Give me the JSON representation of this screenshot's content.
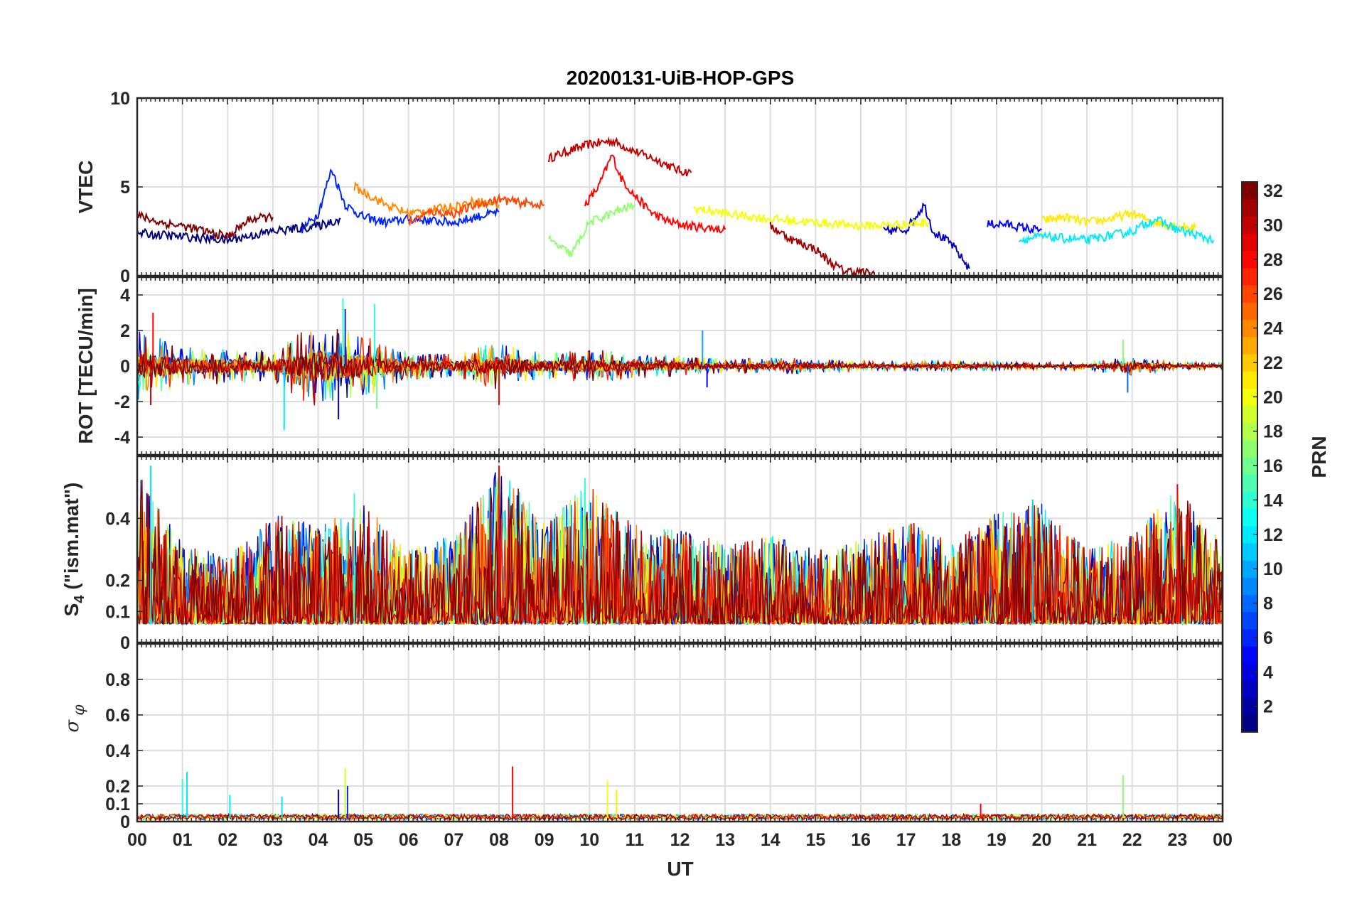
{
  "chart_data": {
    "type": "line",
    "title": "20200131-UiB-HOP-GPS",
    "xlabel": "UT",
    "xlim": [
      0,
      24
    ],
    "x_tick_labels": [
      "00",
      "01",
      "02",
      "03",
      "04",
      "05",
      "06",
      "07",
      "08",
      "09",
      "10",
      "11",
      "12",
      "13",
      "14",
      "15",
      "16",
      "17",
      "18",
      "19",
      "20",
      "21",
      "22",
      "23",
      "00"
    ],
    "grid": true,
    "colorbar": {
      "label": "PRN",
      "colormap": "jet",
      "range": [
        1,
        32
      ],
      "tick_labels": [
        "2",
        "4",
        "6",
        "8",
        "10",
        "12",
        "14",
        "16",
        "18",
        "20",
        "22",
        "24",
        "26",
        "28",
        "30",
        "32"
      ],
      "placement": "right"
    },
    "panels": [
      {
        "key": "vtec",
        "ylabel": "VTEC",
        "ylim": [
          0,
          10
        ],
        "y_ticks": [
          0,
          5,
          10
        ],
        "y_tick_labels": [
          "0",
          "5",
          "10"
        ],
        "series": [
          {
            "prn": 30,
            "x": [
              9.1,
              9.5,
              10.0,
              10.5,
              11.0,
              11.5,
              12.0,
              12.25
            ],
            "y": [
              6.6,
              7.0,
              7.4,
              7.6,
              7.0,
              6.5,
              5.9,
              5.8
            ]
          },
          {
            "prn": 28,
            "x": [
              9.9,
              10.2,
              10.5,
              10.7,
              11.0,
              11.4,
              11.8,
              12.2,
              13.0
            ],
            "y": [
              4.0,
              5.0,
              6.8,
              5.5,
              4.5,
              3.5,
              3.0,
              2.8,
              2.6
            ]
          },
          {
            "prn": 6,
            "x": [
              3.6,
              4.0,
              4.3,
              4.6,
              5.0,
              5.5,
              6.0,
              7.0,
              8.0
            ],
            "y": [
              2.5,
              3.5,
              6.0,
              4.0,
              3.3,
              3.0,
              3.2,
              3.0,
              3.6
            ]
          },
          {
            "prn": 3,
            "x": [
              16.5,
              17.0,
              17.4,
              17.6,
              18.0,
              18.4
            ],
            "y": [
              2.5,
              2.6,
              4.0,
              2.5,
              1.8,
              0.4
            ]
          },
          {
            "prn": 5,
            "x": [
              18.8,
              19.2,
              19.8,
              20.0
            ],
            "y": [
              2.9,
              2.9,
              2.6,
              2.6
            ]
          },
          {
            "prn": 21,
            "x": [
              20.0,
              20.5,
              21.0,
              21.5,
              22.0,
              22.5,
              23.0,
              23.4
            ],
            "y": [
              3.1,
              3.3,
              3.0,
              3.2,
              3.5,
              3.0,
              2.8,
              2.7
            ]
          },
          {
            "prn": 31,
            "x": [
              14.0,
              14.5,
              15.0,
              15.3,
              15.6,
              16.0,
              16.3
            ],
            "y": [
              2.8,
              2.0,
              1.5,
              0.8,
              0.3,
              0.2,
              0.1
            ]
          },
          {
            "prn": 20,
            "x": [
              12.3,
              13.0,
              14.0,
              15.0,
              16.0,
              17.0,
              17.5
            ],
            "y": [
              3.8,
              3.5,
              3.2,
              3.0,
              2.8,
              2.9,
              3.0
            ]
          },
          {
            "prn": 12,
            "x": [
              19.5,
              20.0,
              21.0,
              22.0,
              22.5,
              23.0,
              23.8
            ],
            "y": [
              2.0,
              2.2,
              2.0,
              2.5,
              3.2,
              2.6,
              2.0
            ]
          },
          {
            "prn": 17,
            "x": [
              9.1,
              9.6,
              10.0,
              10.5,
              11.0
            ],
            "y": [
              2.0,
              1.2,
              3.0,
              3.5,
              4.0
            ]
          },
          {
            "prn": 24,
            "x": [
              4.8,
              5.5,
              6.0,
              7.0,
              7.5,
              8.0
            ],
            "y": [
              5.0,
              4.0,
              3.5,
              3.9,
              4.2,
              4.0
            ]
          },
          {
            "prn": 26,
            "x": [
              6.0,
              6.5,
              7.0,
              7.5,
              8.0,
              8.5,
              9.0
            ],
            "y": [
              3.0,
              3.6,
              3.5,
              4.0,
              4.3,
              4.1,
              4.0
            ]
          },
          {
            "prn": 1,
            "x": [
              0.0,
              1.0,
              2.0,
              3.0,
              4.0,
              4.5
            ],
            "y": [
              2.4,
              2.2,
              2.0,
              2.5,
              2.8,
              3.2
            ]
          },
          {
            "prn": 32,
            "x": [
              0.0,
              0.5,
              1.0,
              1.5,
              2.0,
              2.5,
              3.0
            ],
            "y": [
              3.4,
              3.0,
              2.8,
              2.5,
              2.2,
              3.2,
              3.3
            ]
          }
        ]
      },
      {
        "key": "rot",
        "ylabel": "ROT [TECU/min]",
        "ylim": [
          -5,
          5
        ],
        "y_ticks": [
          -4,
          -2,
          0,
          2,
          4
        ],
        "y_tick_labels": [
          "-4",
          "-2",
          "0",
          "2",
          "4"
        ],
        "envelope": {
          "x": [
            0,
            1,
            2,
            3,
            4,
            5,
            6,
            7,
            8,
            9,
            10,
            11,
            12,
            13,
            14,
            15,
            16,
            17,
            18,
            19,
            20,
            21,
            22,
            23,
            24
          ],
          "y": [
            2.0,
            1.2,
            1.0,
            0.9,
            2.5,
            1.8,
            0.8,
            0.7,
            1.4,
            0.7,
            1.0,
            0.7,
            0.6,
            0.4,
            0.5,
            0.4,
            0.3,
            0.3,
            0.3,
            0.25,
            0.2,
            0.25,
            0.6,
            0.2,
            0.2
          ]
        },
        "spikes": [
          {
            "x": 0.3,
            "y": -2.2,
            "prn": 30
          },
          {
            "x": 0.35,
            "y": 3.0,
            "prn": 28
          },
          {
            "x": 3.25,
            "y": -3.6,
            "prn": 12
          },
          {
            "x": 4.45,
            "y": -3.0,
            "prn": 3
          },
          {
            "x": 4.6,
            "y": 3.2,
            "prn": 6
          },
          {
            "x": 4.55,
            "y": 3.8,
            "prn": 14
          },
          {
            "x": 5.25,
            "y": 3.5,
            "prn": 14
          },
          {
            "x": 5.3,
            "y": -2.4,
            "prn": 16
          },
          {
            "x": 8.0,
            "y": -2.2,
            "prn": 28
          },
          {
            "x": 12.5,
            "y": 2.0,
            "prn": 10
          },
          {
            "x": 12.6,
            "y": -1.2,
            "prn": 5
          },
          {
            "x": 21.8,
            "y": 1.5,
            "prn": 17
          },
          {
            "x": 21.9,
            "y": -1.5,
            "prn": 8
          }
        ]
      },
      {
        "key": "s4",
        "ylabel": "S4 (\"ism.mat\")",
        "ylim": [
          0,
          0.6
        ],
        "y_ticks": [
          0,
          0.1,
          0.2,
          0.4
        ],
        "y_tick_labels": [
          "0",
          "0.1",
          "0.2",
          "0.4"
        ],
        "baseline": 0.06,
        "envelope": {
          "x": [
            0,
            1,
            2,
            3,
            4,
            5,
            6,
            7,
            8,
            9,
            10,
            11,
            12,
            13,
            14,
            15,
            16,
            17,
            18,
            19,
            20,
            21,
            22,
            23,
            24
          ],
          "y": [
            0.55,
            0.32,
            0.28,
            0.42,
            0.38,
            0.45,
            0.3,
            0.35,
            0.57,
            0.4,
            0.52,
            0.38,
            0.37,
            0.32,
            0.35,
            0.3,
            0.33,
            0.4,
            0.32,
            0.42,
            0.45,
            0.3,
            0.35,
            0.5,
            0.32
          ]
        },
        "spikes": [
          {
            "x": 0.3,
            "y": 0.57,
            "prn": 12
          },
          {
            "x": 4.8,
            "y": 0.48,
            "prn": 14
          },
          {
            "x": 8.0,
            "y": 0.57,
            "prn": 28
          },
          {
            "x": 9.9,
            "y": 0.53,
            "prn": 14
          },
          {
            "x": 19.8,
            "y": 0.46,
            "prn": 11
          },
          {
            "x": 23.0,
            "y": 0.51,
            "prn": 28
          }
        ]
      },
      {
        "key": "sigma_phi",
        "ylabel": "σ φ",
        "ylim": [
          0,
          1
        ],
        "y_ticks": [
          0,
          0.1,
          0.2,
          0.4,
          0.6,
          0.8
        ],
        "y_tick_labels": [
          "0",
          "0.1",
          "0.2",
          "0.4",
          "0.6",
          "0.8"
        ],
        "baseline": 0.02,
        "spikes": [
          {
            "x": 1.1,
            "y": 0.28,
            "prn": 12
          },
          {
            "x": 1.0,
            "y": 0.24,
            "prn": 14
          },
          {
            "x": 2.05,
            "y": 0.15,
            "prn": 12
          },
          {
            "x": 3.2,
            "y": 0.14,
            "prn": 12
          },
          {
            "x": 4.45,
            "y": 0.18,
            "prn": 3
          },
          {
            "x": 4.6,
            "y": 0.3,
            "prn": 19
          },
          {
            "x": 4.65,
            "y": 0.2,
            "prn": 6
          },
          {
            "x": 8.3,
            "y": 0.31,
            "prn": 28
          },
          {
            "x": 10.4,
            "y": 0.23,
            "prn": 20
          },
          {
            "x": 10.6,
            "y": 0.18,
            "prn": 21
          },
          {
            "x": 18.65,
            "y": 0.1,
            "prn": 28
          },
          {
            "x": 21.8,
            "y": 0.26,
            "prn": 17
          }
        ]
      }
    ]
  }
}
